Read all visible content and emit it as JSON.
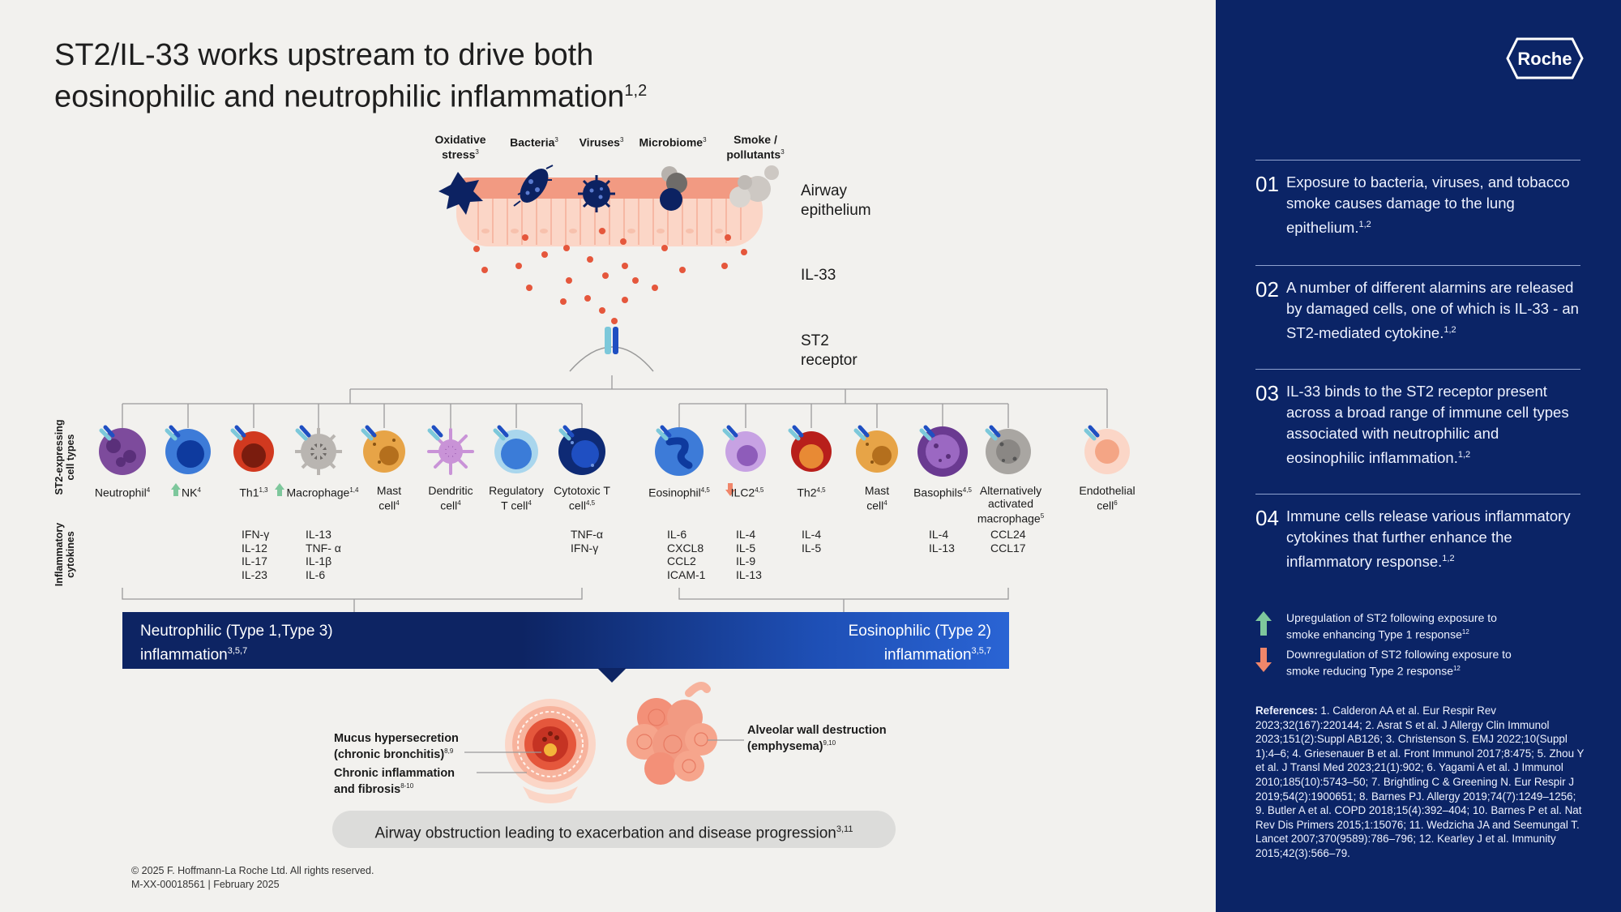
{
  "title": {
    "line1": "ST2/IL-33 works upstream to drive both",
    "line2": "eosinophilic and neutrophilic inflammation",
    "sup": "1,2"
  },
  "stimuli": [
    {
      "label": "Oxidative stress",
      "sup": "3"
    },
    {
      "label": "Bacteria",
      "sup": "3"
    },
    {
      "label": "Viruses",
      "sup": "3"
    },
    {
      "label": "Microbiome",
      "sup": "3"
    },
    {
      "label": "Smoke / pollutants",
      "sup": "3"
    }
  ],
  "labels": {
    "airway_epithelium": "Airway epithelium",
    "il33": "IL-33",
    "st2_receptor": "ST2 receptor",
    "st2_expressing": "ST2-expressing cell types",
    "inflammatory_cytokines": "Inflammatory cytokines"
  },
  "cells": [
    {
      "name": "Neutrophil",
      "sup": "4"
    },
    {
      "name": "NK",
      "sup": "4"
    },
    {
      "name": "Th1",
      "sup": "1,3"
    },
    {
      "name": "Macrophage",
      "sup": "1,4"
    },
    {
      "name": "Mast cell",
      "sup": "4"
    },
    {
      "name": "Dendritic cell",
      "sup": "4"
    },
    {
      "name": "Regulatory T cell",
      "sup": "4"
    },
    {
      "name": "Cytotoxic T cell",
      "sup": "4,5"
    },
    {
      "name": "Eosinophil",
      "sup": "4,5"
    },
    {
      "name": "ILC2",
      "sup": "4,5"
    },
    {
      "name": "Th2",
      "sup": "4,5"
    },
    {
      "name": "Mast cell",
      "sup": "4"
    },
    {
      "name": "Basophils",
      "sup": "4,5"
    },
    {
      "name": "Alternatively activated macrophage",
      "sup": "5"
    },
    {
      "name": "Endothelial cell",
      "sup": "6"
    }
  ],
  "cytokines": {
    "th1": "IFN-γ\nIL-12\nIL-17\nIL-23",
    "macrophage": "IL-13\nTNF- α\nIL-1β\nIL-6",
    "cytotoxic": "TNF-α\nIFN-γ",
    "eosinophil": "IL-6\nCXCL8\nCCL2\nICAM-1",
    "ilc2": "IL-4\nIL-5\nIL-9\nIL-13",
    "th2": "IL-4\nIL-5",
    "basophils": "IL-4\nIL-13",
    "alt_macrophage": "CCL24\nCCL17"
  },
  "inflammation": {
    "neutrophilic_line1": "Neutrophilic (Type 1,Type 3)",
    "neutrophilic_line2": "inflammation",
    "neutrophilic_sup": "3,5,7",
    "eosinophilic_line1": "Eosinophilic (Type 2)",
    "eosinophilic_line2": "inflammation",
    "eosinophilic_sup": "3,5,7"
  },
  "outcomes": {
    "mucus": "Mucus hypersecretion",
    "mucus2": "(chronic bronchitis)",
    "mucus_sup": "8,9",
    "chronic": "Chronic inflammation",
    "chronic2": "and fibrosis",
    "chronic_sup": "8-10",
    "alveolar": "Alveolar wall destruction",
    "alveolar2": "(emphysema)",
    "alveolar_sup": "9,10",
    "pill": "Airway obstruction leading to exacerbation and disease progression",
    "pill_sup": "3,11"
  },
  "copyright": {
    "line1": "© 2025 F. Hoffmann-La Roche Ltd. All rights reserved.",
    "line2": "M-XX-00018561 | February 2025"
  },
  "panel": {
    "logo": "Roche",
    "steps": [
      {
        "num": "01",
        "text": "Exposure to bacteria, viruses, and tobacco smoke causes damage to the lung epithelium.",
        "sup": "1,2"
      },
      {
        "num": "02",
        "text": "A number of different alarmins are released by damaged cells, one of which is IL-33 - an ST2-mediated cytokine.",
        "sup": "1,2"
      },
      {
        "num": "03",
        "text": "IL-33 binds to the ST2 receptor present across a broad range of  immune cell types associated with neutrophilic and eosinophilic inflammation.",
        "sup": "1,2"
      },
      {
        "num": "04",
        "text": "Immune cells release various inflammatory cytokines that further enhance the inflammatory response.",
        "sup": "1,2"
      }
    ],
    "legend": [
      {
        "text1": "Upregulation of ST2 following exposure to",
        "text2": "smoke enhancing Type 1 response",
        "sup": "12",
        "color": "#7ec79c"
      },
      {
        "text1": "Downregulation of ST2 following exposure to",
        "text2": "smoke reducing Type 2 response",
        "sup": "12",
        "color": "#f0866a"
      }
    ],
    "references_label": "References:",
    "references": "1. Calderon AA et al. Eur Respir Rev 2023;32(167):220144; 2. Asrat S et al. J Allergy Clin Immunol 2023;151(2):Suppl AB126; 3. Christenson S. EMJ 2022;10(Suppl 1):4–6; 4. Griesenauer B et al. Front Immunol 2017;8:475; 5. Zhou Y et al. J Transl Med 2023;21(1):902; 6. Yagami A et al. J Immunol 2010;185(10):5743–50; 7. Brightling C & Greening N. Eur Respir J 2019;54(2):1900651; 8. Barnes PJ. Allergy 2019;74(7):1249–1256; 9. Butler A et al. COPD 2018;15(4):392–404; 10. Barnes P et al. Nat Rev Dis Primers 2015;1:15076; 11. Wedzicha JA and Seemungal T. Lancet 2007;370(9589):786–796; 12. Kearley J et al. Immunity 2015;42(3):566–79."
  },
  "colors": {
    "panel_bg": "#0b2466",
    "up_arrow": "#7ec79c",
    "down_arrow": "#f0866a",
    "epithelium": "#f6b7a2",
    "il33_dot": "#e5573c"
  }
}
